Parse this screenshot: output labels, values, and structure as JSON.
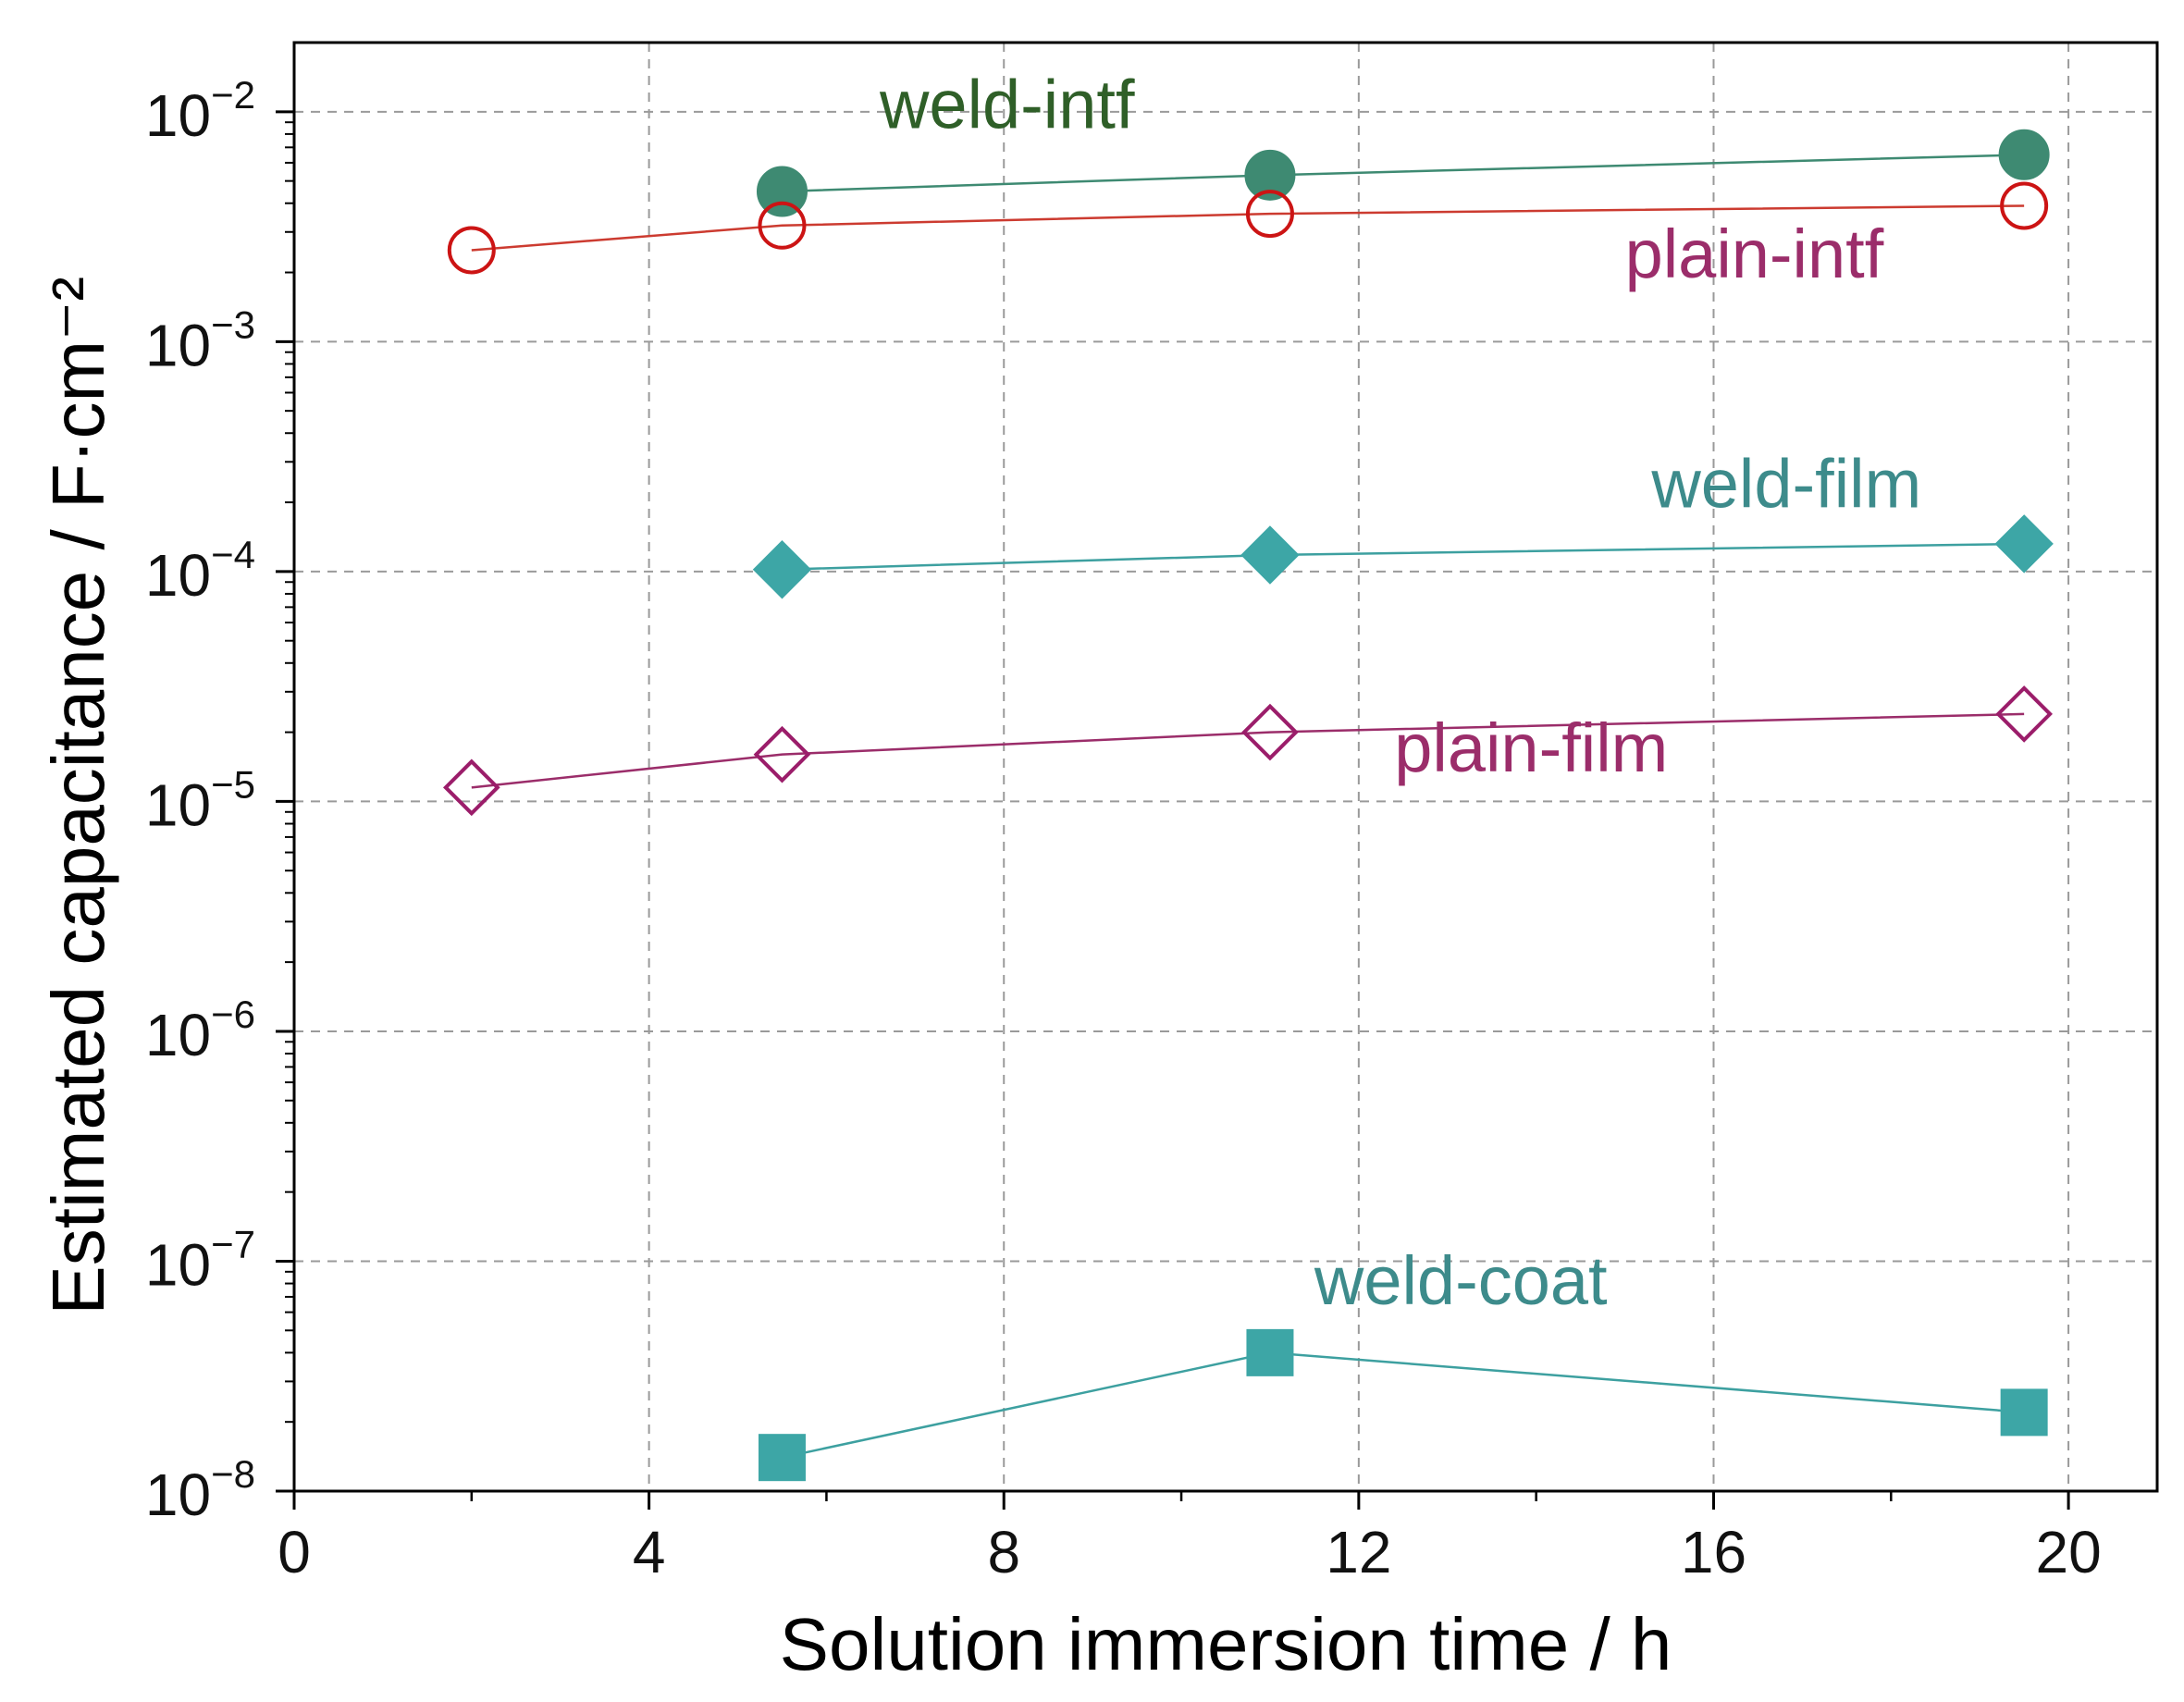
{
  "chart_data": {
    "type": "scatter",
    "title": "",
    "xlabel": "Solution immersion time / h",
    "ylabel": "Estimated capacitance / F·cm⁻²",
    "xlim": [
      0,
      21
    ],
    "ylim": [
      1e-08,
      0.02
    ],
    "y_scale": "log",
    "grid": true,
    "x_ticks": [
      0,
      4,
      8,
      12,
      16,
      20
    ],
    "x_tick_labels": [
      "0",
      "4",
      "8",
      "12",
      "16",
      "20"
    ],
    "y_ticks": [
      1e-08,
      1e-07,
      1e-06,
      1e-05,
      0.0001,
      0.001,
      0.01
    ],
    "y_tick_exponents": [
      "−8",
      "−7",
      "−6",
      "−5",
      "−4",
      "−3",
      "−2"
    ],
    "y_tick_base": "10",
    "series": [
      {
        "name": "weld-intf",
        "label_color": "#2f5f28",
        "line_color": "#3e8a72",
        "marker": "circle",
        "filled": true,
        "marker_color": "#3e8a72",
        "x": [
          5.5,
          11,
          19.5
        ],
        "y": [
          0.0045,
          0.0053,
          0.0065
        ],
        "label_anchor": [
          6.6,
          0.0085
        ]
      },
      {
        "name": "plain-intf",
        "label_color": "#9b2d6a",
        "line_color": "#cc3b30",
        "marker": "circle",
        "filled": false,
        "marker_color": "#cc1414",
        "x": [
          2,
          5.5,
          11,
          19.5
        ],
        "y": [
          0.0025,
          0.0032,
          0.0036,
          0.0039
        ],
        "label_anchor": [
          15,
          0.0019
        ]
      },
      {
        "name": "weld-film",
        "label_color": "#3d8b8b",
        "line_color": "#3da0a0",
        "marker": "diamond",
        "filled": true,
        "marker_color": "#3da6a6",
        "x": [
          5.5,
          11,
          19.5
        ],
        "y": [
          0.000102,
          0.000118,
          0.000132
        ],
        "label_anchor": [
          15.3,
          0.00019
        ]
      },
      {
        "name": "plain-film",
        "label_color": "#9b2d6a",
        "line_color": "#9b2d6a",
        "marker": "diamond",
        "filled": false,
        "marker_color": "#9b1d6a",
        "x": [
          2,
          5.5,
          11,
          19.5
        ],
        "y": [
          1.15e-05,
          1.6e-05,
          2e-05,
          2.4e-05
        ],
        "label_anchor": [
          12.4,
          1.35e-05
        ]
      },
      {
        "name": "weld-coat",
        "label_color": "#3d8b8b",
        "line_color": "#3da0a0",
        "marker": "square",
        "filled": true,
        "marker_color": "#3da6a6",
        "x": [
          5.5,
          11,
          19.5
        ],
        "y": [
          1.4e-08,
          4e-08,
          2.2e-08
        ],
        "label_anchor": [
          11.5,
          6.5e-08
        ]
      }
    ]
  }
}
